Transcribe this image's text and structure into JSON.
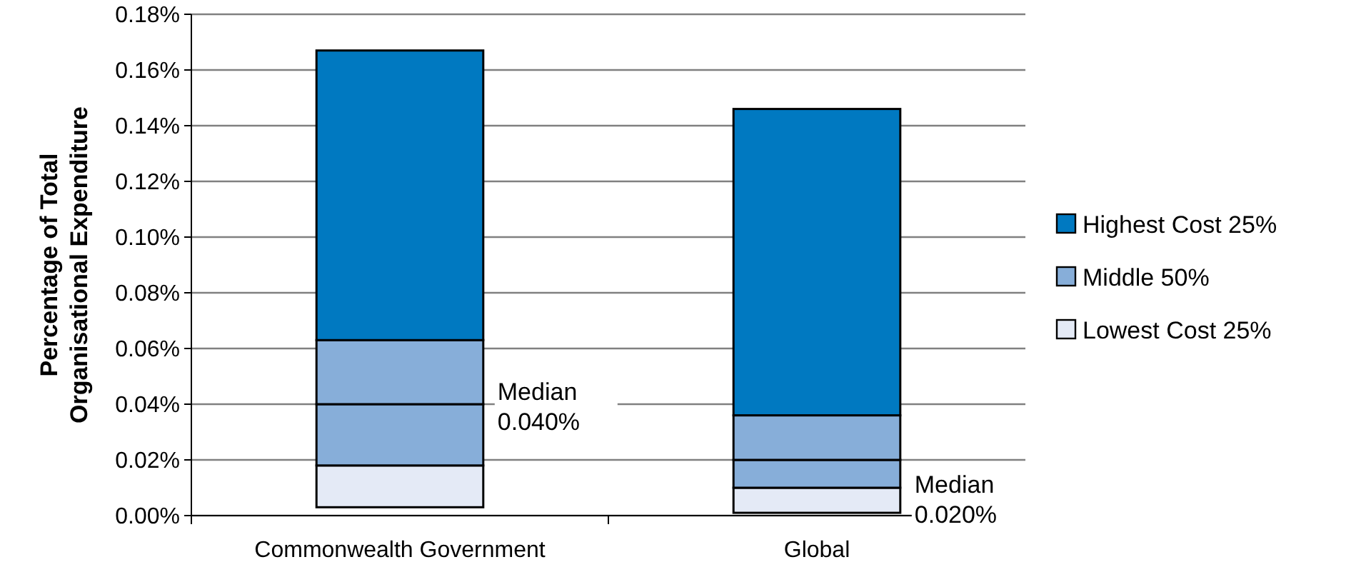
{
  "chart_data": {
    "type": "bar",
    "ylabel": "Percentage of Total\nOrganisational Expenditure",
    "categories": [
      "Commonwealth Government",
      "Global"
    ],
    "series": [
      {
        "name": "Lowest Cost 25%",
        "color": "#e4eaf6",
        "base": [
          0.003,
          0.001
        ],
        "values": [
          0.015,
          0.009
        ]
      },
      {
        "name": "Middle 50%",
        "color": "#87aed9",
        "base": [
          0.018,
          0.01
        ],
        "values": [
          0.022,
          0.01
        ]
      },
      {
        "color": "#87aed9",
        "base": [
          0.04,
          0.02
        ],
        "values": [
          0.023,
          0.016
        ]
      },
      {
        "name": "Highest Cost 25%",
        "color": "#0079c1",
        "base": [
          0.063,
          0.036
        ],
        "values": [
          0.104,
          0.11
        ]
      }
    ],
    "ylim": [
      0,
      0.18
    ],
    "yticks": [
      {
        "value": 0,
        "label": "0.00%"
      },
      {
        "value": 0.02,
        "label": "0.02%"
      },
      {
        "value": 0.04,
        "label": "0.04%"
      },
      {
        "value": 0.06,
        "label": "0.06%"
      },
      {
        "value": 0.08,
        "label": "0.08%"
      },
      {
        "value": 0.1,
        "label": "0.10%"
      },
      {
        "value": 0.12,
        "label": "0.12%"
      },
      {
        "value": 0.14,
        "label": "0.14%"
      },
      {
        "value": 0.16,
        "label": "0.16%"
      },
      {
        "value": 0.18,
        "label": "0.18%"
      }
    ],
    "grid": "y",
    "legend": "right",
    "annotations": [
      "Median\n0.040%",
      "Median\n0.020%"
    ]
  }
}
